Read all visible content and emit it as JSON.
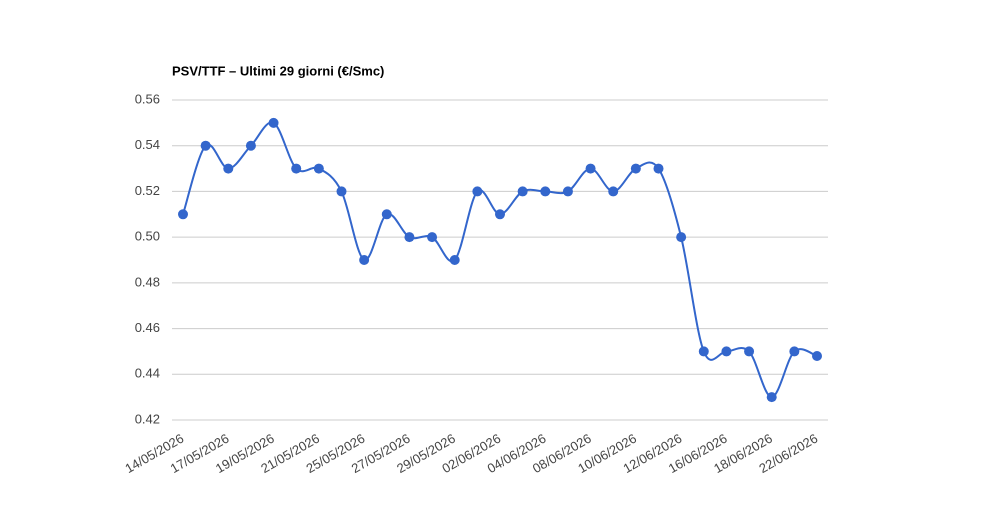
{
  "chart_data": {
    "type": "line",
    "title": "PSV/TTF – Ultimi 29 giorni (€/Smc)",
    "categories": [
      "14/05/2026",
      null,
      "17/05/2026",
      null,
      "19/05/2026",
      null,
      "21/05/2026",
      null,
      "25/05/2026",
      null,
      "27/05/2026",
      null,
      "29/05/2026",
      null,
      "02/06/2026",
      null,
      "04/06/2026",
      null,
      "08/06/2026",
      null,
      "10/06/2026",
      null,
      "12/06/2026",
      null,
      "16/06/2026",
      null,
      "18/06/2026",
      null,
      "22/06/2026"
    ],
    "values": [
      0.51,
      0.54,
      0.53,
      0.54,
      0.55,
      0.53,
      0.53,
      0.52,
      0.49,
      0.51,
      0.5,
      0.5,
      0.49,
      0.52,
      0.51,
      0.52,
      0.52,
      0.52,
      0.53,
      0.52,
      0.53,
      0.53,
      0.5,
      0.45,
      0.45,
      0.45,
      0.43,
      0.45,
      0.448
    ],
    "color": "#3366cc",
    "ylim": [
      0.42,
      0.56
    ],
    "yticks": [
      0.42,
      0.44,
      0.46,
      0.48,
      {
        "value": 0.5,
        "label": "0.50"
      },
      0.52,
      0.54,
      0.56
    ],
    "grid": true
  }
}
